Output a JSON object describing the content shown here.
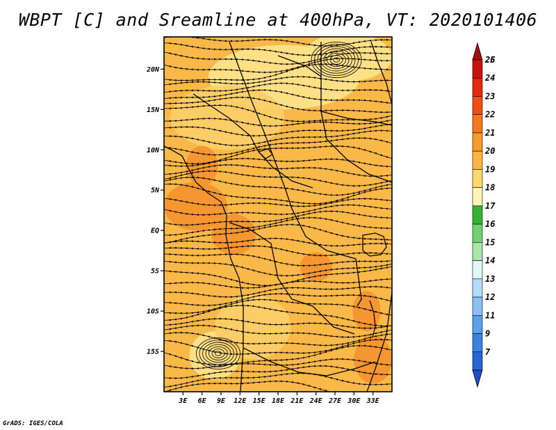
{
  "title": "WBPT [C] and Sreamline at 400hPa, VT: 2020101406",
  "credit": "GrADS: IGES/COLA",
  "map": {
    "lon_range": [
      0,
      36
    ],
    "lat_range": [
      -20,
      24
    ],
    "lat_ticks": [
      {
        "value": 20,
        "label": "20N"
      },
      {
        "value": 15,
        "label": "15N"
      },
      {
        "value": 10,
        "label": "10N"
      },
      {
        "value": 5,
        "label": "5N"
      },
      {
        "value": 0,
        "label": "EQ"
      },
      {
        "value": -5,
        "label": "5S"
      },
      {
        "value": -10,
        "label": "10S"
      },
      {
        "value": -15,
        "label": "15S"
      }
    ],
    "lon_ticks": [
      {
        "value": 3,
        "label": "3E"
      },
      {
        "value": 6,
        "label": "6E"
      },
      {
        "value": 9,
        "label": "9E"
      },
      {
        "value": 12,
        "label": "12E"
      },
      {
        "value": 15,
        "label": "15E"
      },
      {
        "value": 18,
        "label": "18E"
      },
      {
        "value": 21,
        "label": "21E"
      },
      {
        "value": 24,
        "label": "24E"
      },
      {
        "value": 27,
        "label": "27E"
      },
      {
        "value": 30,
        "label": "30E"
      },
      {
        "value": 33,
        "label": "33E"
      }
    ],
    "base_color": "#f9b848",
    "field_regions": [
      {
        "value": 19,
        "color": "#fde28a",
        "lon": 29,
        "lat": 21.5,
        "rx": 7,
        "ry": 3
      },
      {
        "value": 19,
        "color": "#fde28a",
        "lon": 19,
        "lat": 19,
        "rx": 12,
        "ry": 4
      },
      {
        "value": 19,
        "color": "#fde28a",
        "lon": 8,
        "lat": -15.5,
        "rx": 4,
        "ry": 3
      },
      {
        "value": 20,
        "color": "#fccd68",
        "lon": 10,
        "lat": 14,
        "rx": 9,
        "ry": 4
      },
      {
        "value": 20,
        "color": "#fccd68",
        "lon": 14,
        "lat": -12,
        "rx": 6,
        "ry": 4
      },
      {
        "value": 22,
        "color": "#f69430",
        "lon": 5,
        "lat": 3,
        "rx": 5,
        "ry": 3
      },
      {
        "value": 22,
        "color": "#f69430",
        "lon": 6,
        "lat": 8,
        "rx": 2.5,
        "ry": 2.5
      },
      {
        "value": 22,
        "color": "#f69430",
        "lon": 11,
        "lat": -0.5,
        "rx": 3.5,
        "ry": 2.5
      },
      {
        "value": 22,
        "color": "#f69430",
        "lon": 24,
        "lat": -4.5,
        "rx": 2.5,
        "ry": 1.8
      },
      {
        "value": 22,
        "color": "#f69430",
        "lon": 32,
        "lat": -10,
        "rx": 2.2,
        "ry": 2.5
      },
      {
        "value": 22,
        "color": "#f69430",
        "lon": 33,
        "lat": -16,
        "rx": 3,
        "ry": 3
      }
    ]
  },
  "colorbar": {
    "levels": [
      {
        "label": "26",
        "color": "#a50f0f"
      },
      {
        "label": "25",
        "color": "#c8140f"
      },
      {
        "label": "24",
        "color": "#e12a0f"
      },
      {
        "label": "23",
        "color": "#f04f14"
      },
      {
        "label": "22",
        "color": "#f6781e"
      },
      {
        "label": "21",
        "color": "#f89a28"
      },
      {
        "label": "20",
        "color": "#fbb543"
      },
      {
        "label": "19",
        "color": "#fdd86e"
      },
      {
        "label": "18",
        "color": "#fff4b4"
      },
      {
        "label": "17",
        "color": "#32b432"
      },
      {
        "label": "16",
        "color": "#6ed26e"
      },
      {
        "label": "15",
        "color": "#aae6aa"
      },
      {
        "label": "14",
        "color": "#e0f8f8"
      },
      {
        "label": "13",
        "color": "#b4dcfa"
      },
      {
        "label": "12",
        "color": "#8cc0f5"
      },
      {
        "label": "11",
        "color": "#5aa0eb"
      },
      {
        "label": "9",
        "color": "#3c82e1"
      },
      {
        "label": "7",
        "color": "#2864d2"
      },
      {
        "label": "",
        "color": "#1e50c8"
      }
    ]
  }
}
